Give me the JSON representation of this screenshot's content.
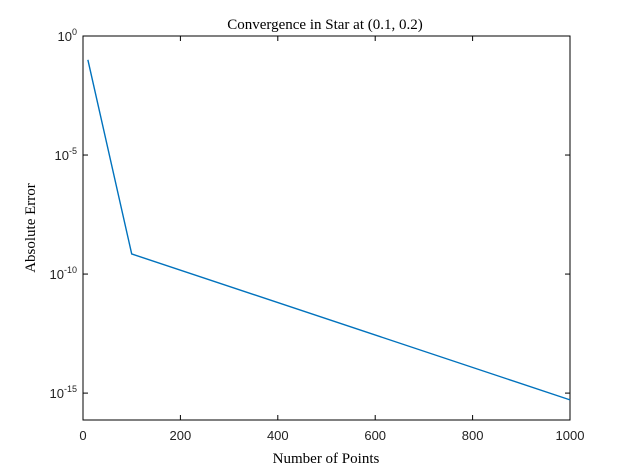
{
  "chart_data": {
    "type": "line",
    "title": "Convergence in Star at (0.1, 0.2)",
    "xlabel": "Number of Points",
    "ylabel": "Absolute Error",
    "xlim": [
      0,
      1000
    ],
    "ylim": [
      1e-16,
      1
    ],
    "yscale": "log",
    "grid": false,
    "legend": "none",
    "x_ticks": [
      0,
      200,
      400,
      600,
      800,
      1000
    ],
    "x_tick_labels": [
      "0",
      "200",
      "400",
      "600",
      "800",
      "1000"
    ],
    "y_ticks": [
      1,
      1e-05,
      1e-10,
      1e-15
    ],
    "y_tick_labels": [
      {
        "base": "10",
        "exp": "0"
      },
      {
        "base": "10",
        "exp": "-5"
      },
      {
        "base": "10",
        "exp": "-10"
      },
      {
        "base": "10",
        "exp": "-15"
      }
    ],
    "series": [
      {
        "color": "#0072BD",
        "x": [
          10,
          100,
          1000
        ],
        "y": [
          0.1,
          7e-10,
          5.2e-16
        ]
      }
    ]
  }
}
